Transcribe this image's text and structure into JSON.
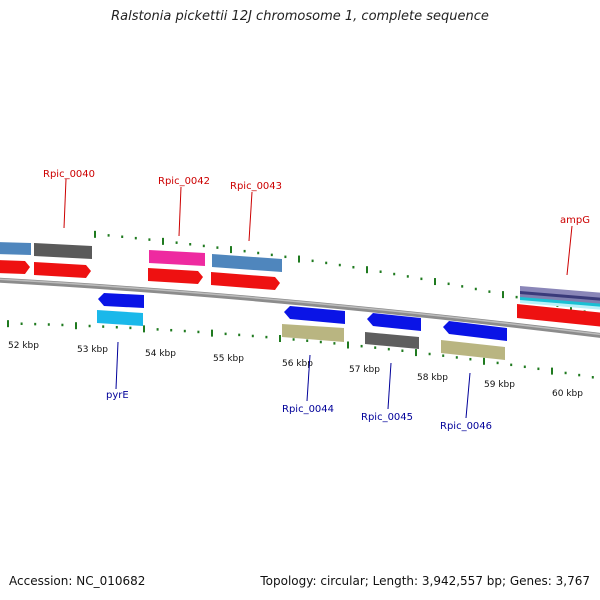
{
  "title": "Ralstonia pickettii 12J chromosome 1, complete sequence",
  "footer": {
    "accession": "Accession: NC_010682",
    "stats": "Topology: circular; Length: 3,942,557 bp; Genes: 3,767"
  },
  "colors": {
    "backbone": "#8c8c8c",
    "tick": "#1f7a1f",
    "forward_label": "#cc0000",
    "reverse_label": "#000099"
  },
  "ruler": [
    {
      "label": "52 kbp"
    },
    {
      "label": "53 kbp"
    },
    {
      "label": "54 kbp"
    },
    {
      "label": "55 kbp"
    },
    {
      "label": "56 kbp"
    },
    {
      "label": "57 kbp"
    },
    {
      "label": "58 kbp"
    },
    {
      "label": "59 kbp"
    },
    {
      "label": "60 kbp"
    }
  ],
  "gene_labels": [
    {
      "name": "Rpic_0040",
      "strand": "forward"
    },
    {
      "name": "Rpic_0042",
      "strand": "forward"
    },
    {
      "name": "Rpic_0043",
      "strand": "forward"
    },
    {
      "name": "ampG",
      "strand": "forward"
    },
    {
      "name": "pyrE",
      "strand": "reverse"
    },
    {
      "name": "Rpic_0044",
      "strand": "reverse"
    },
    {
      "name": "Rpic_0045",
      "strand": "reverse"
    },
    {
      "name": "Rpic_0046",
      "strand": "reverse"
    }
  ]
}
